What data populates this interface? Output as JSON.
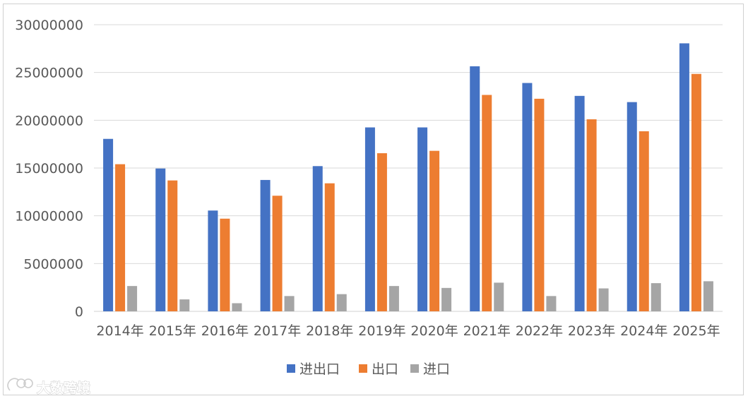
{
  "chart_data": {
    "type": "bar",
    "categories": [
      "2014年",
      "2015年",
      "2016年",
      "2017年",
      "2018年",
      "2019年",
      "2020年",
      "2021年",
      "2022年",
      "2023年",
      "2024年",
      "2025年"
    ],
    "series": [
      {
        "name": "进出口",
        "color": "#4472C4",
        "values": [
          18050000,
          14950000,
          10550000,
          13750000,
          15200000,
          19250000,
          19250000,
          25650000,
          23900000,
          22550000,
          21900000,
          28050000
        ]
      },
      {
        "name": "出口",
        "color": "#ED7D31",
        "values": [
          15400000,
          13700000,
          9700000,
          12100000,
          13400000,
          16550000,
          16800000,
          22650000,
          22250000,
          20100000,
          18850000,
          24850000
        ]
      },
      {
        "name": "进口",
        "color": "#A5A5A5",
        "values": [
          2650000,
          1250000,
          850000,
          1600000,
          1800000,
          2650000,
          2450000,
          3000000,
          1600000,
          2400000,
          2950000,
          3150000
        ]
      }
    ],
    "yticks": [
      "0",
      "5000000",
      "10000000",
      "15000000",
      "20000000",
      "25000000",
      "30000000"
    ],
    "ylim": [
      0,
      30000000
    ],
    "grid": true,
    "legend_position": "bottom"
  },
  "watermark": {
    "text": "大数跨境"
  }
}
